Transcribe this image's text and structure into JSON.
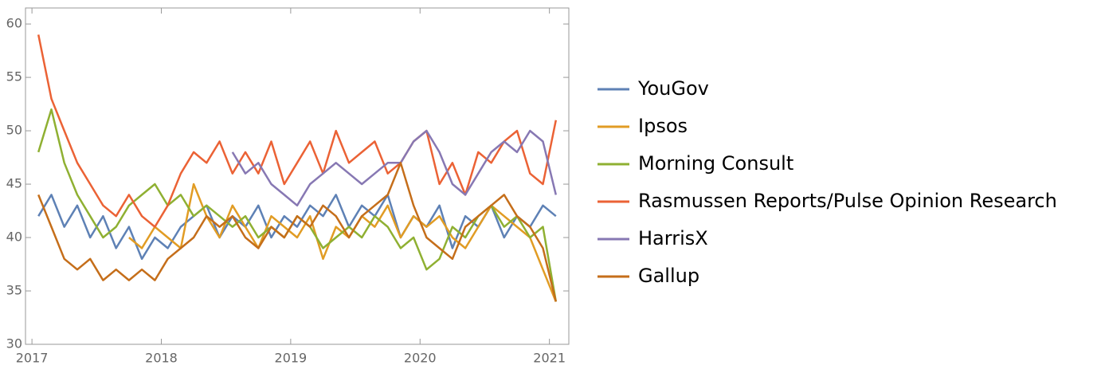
{
  "chart_data": {
    "type": "line",
    "x": [
      2017.05,
      2017.15,
      2017.25,
      2017.35,
      2017.45,
      2017.55,
      2017.65,
      2017.75,
      2017.85,
      2017.95,
      2018.05,
      2018.15,
      2018.25,
      2018.35,
      2018.45,
      2018.55,
      2018.65,
      2018.75,
      2018.85,
      2018.95,
      2019.05,
      2019.15,
      2019.25,
      2019.35,
      2019.45,
      2019.55,
      2019.65,
      2019.75,
      2019.85,
      2019.95,
      2020.05,
      2020.15,
      2020.25,
      2020.35,
      2020.45,
      2020.55,
      2020.65,
      2020.75,
      2020.85,
      2020.95,
      2021.05
    ],
    "series": [
      {
        "name": "YouGov",
        "color": "#5e81b5",
        "values": [
          42,
          44,
          41,
          43,
          40,
          42,
          39,
          41,
          38,
          40,
          39,
          41,
          42,
          43,
          40,
          42,
          41,
          43,
          40,
          42,
          41,
          43,
          42,
          44,
          41,
          43,
          42,
          44,
          40,
          42,
          41,
          43,
          39,
          42,
          41,
          43,
          40,
          42,
          41,
          43,
          42
        ]
      },
      {
        "name": "Ipsos",
        "color": "#e19c24",
        "values": [
          null,
          null,
          null,
          null,
          null,
          null,
          null,
          40,
          39,
          41,
          40,
          39,
          45,
          42,
          40,
          43,
          41,
          39,
          42,
          41,
          40,
          42,
          38,
          41,
          40,
          42,
          41,
          43,
          40,
          42,
          41,
          42,
          40,
          39,
          41,
          43,
          42,
          41,
          40,
          37,
          34
        ]
      },
      {
        "name": "Morning Consult",
        "color": "#8fb032",
        "values": [
          48,
          52,
          47,
          44,
          42,
          40,
          41,
          43,
          44,
          45,
          43,
          44,
          42,
          43,
          42,
          41,
          42,
          40,
          41,
          40,
          42,
          41,
          39,
          40,
          41,
          40,
          42,
          41,
          39,
          40,
          37,
          38,
          41,
          40,
          42,
          43,
          41,
          42,
          40,
          41,
          34
        ]
      },
      {
        "name": "Rasmussen Reports/Pulse Opinion Research",
        "color": "#eb6235",
        "values": [
          59,
          53,
          50,
          47,
          45,
          43,
          42,
          44,
          42,
          41,
          43,
          46,
          48,
          47,
          49,
          46,
          48,
          46,
          49,
          45,
          47,
          49,
          46,
          50,
          47,
          48,
          49,
          46,
          47,
          49,
          50,
          45,
          47,
          44,
          48,
          47,
          49,
          50,
          46,
          45,
          51
        ]
      },
      {
        "name": "HarrisX",
        "color": "#8778b3",
        "values": [
          null,
          null,
          null,
          null,
          null,
          null,
          null,
          null,
          null,
          null,
          null,
          null,
          null,
          null,
          null,
          48,
          46,
          47,
          45,
          44,
          43,
          45,
          46,
          47,
          46,
          45,
          46,
          47,
          47,
          49,
          50,
          48,
          45,
          44,
          46,
          48,
          49,
          48,
          50,
          49,
          44
        ]
      },
      {
        "name": "Gallup",
        "color": "#c56e1a",
        "values": [
          44,
          41,
          38,
          37,
          38,
          36,
          37,
          36,
          37,
          36,
          38,
          39,
          40,
          42,
          41,
          42,
          40,
          39,
          41,
          40,
          42,
          41,
          43,
          42,
          40,
          42,
          43,
          44,
          47,
          43,
          40,
          39,
          38,
          41,
          42,
          43,
          44,
          42,
          41,
          39,
          34
        ]
      }
    ],
    "xlim": [
      2016.95,
      2021.15
    ],
    "xticks": [
      2017,
      2018,
      2019,
      2020,
      2021
    ],
    "ylim": [
      30,
      61.5
    ],
    "yticks": [
      30,
      35,
      40,
      45,
      50,
      55,
      60
    ],
    "grid": false,
    "legend": "right"
  }
}
